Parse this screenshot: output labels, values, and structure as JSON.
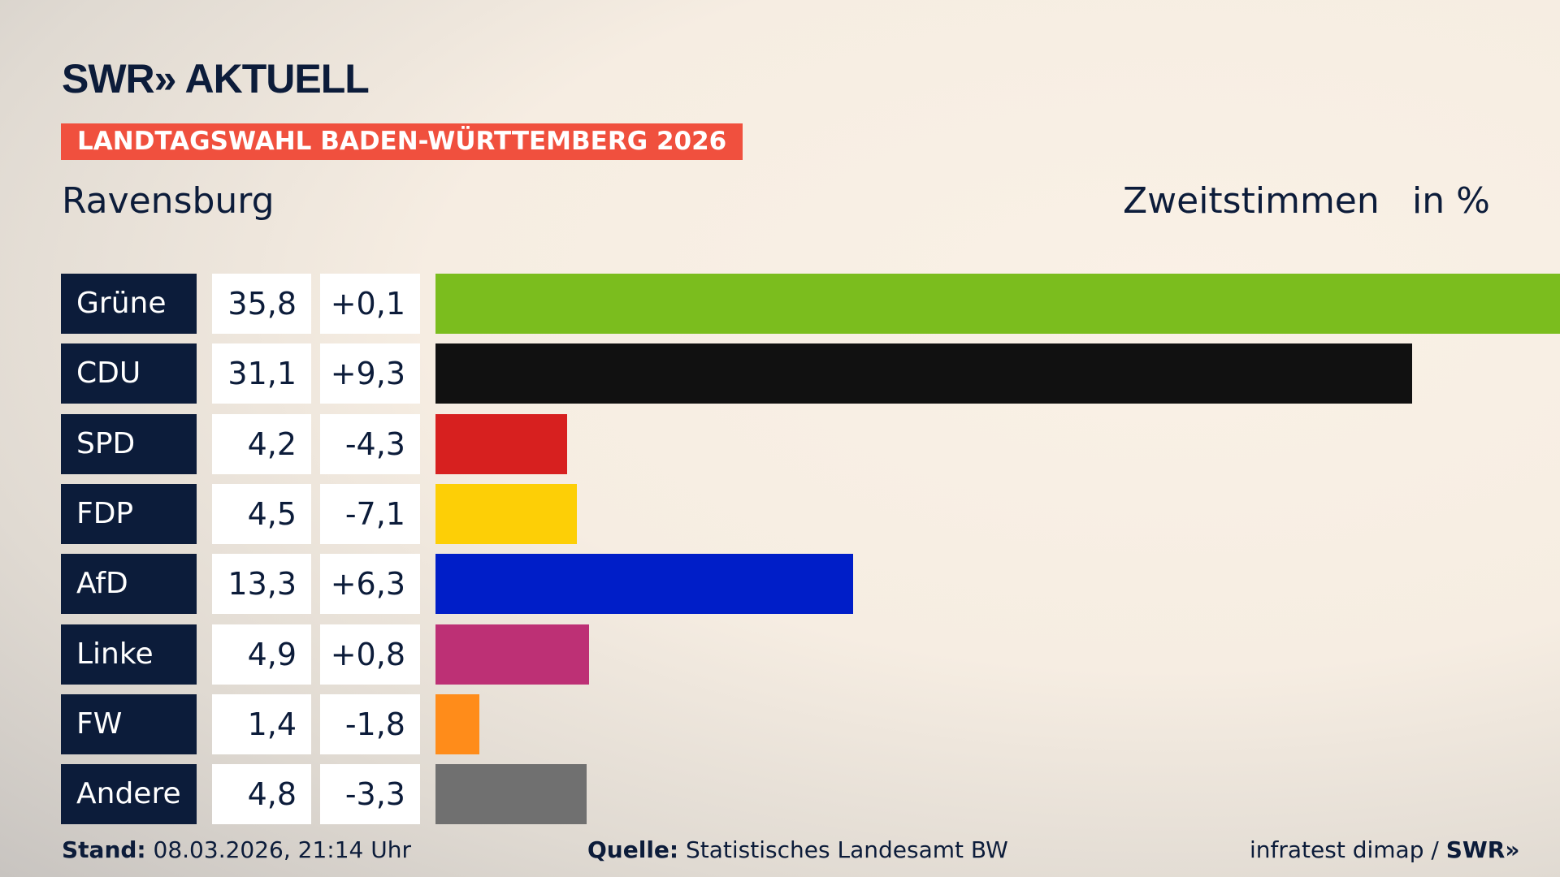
{
  "header": {
    "logo": "SWR» AKTUELL",
    "banner": "LANDTAGSWAHL BADEN-WÜRTTEMBERG 2026",
    "region": "Ravensburg",
    "measure": "Zweitstimmen",
    "unit": "in %"
  },
  "chart_data": {
    "type": "bar",
    "orientation": "horizontal",
    "categories": [
      "Grüne",
      "CDU",
      "SPD",
      "FDP",
      "AfD",
      "Linke",
      "FW",
      "Andere"
    ],
    "series": [
      {
        "values": [
          35.8,
          31.1,
          4.2,
          4.5,
          13.3,
          4.9,
          1.4,
          4.8
        ]
      }
    ],
    "value_labels": [
      "35,8",
      "31,1",
      "4,2",
      "4,5",
      "13,3",
      "4,9",
      "1,4",
      "4,8"
    ],
    "change_labels": [
      "+0,1",
      "+9,3",
      "-4,3",
      "-7,1",
      "+6,3",
      "+0,8",
      "-1,8",
      "-3,3"
    ],
    "changes": [
      0.1,
      9.3,
      -4.3,
      -7.1,
      6.3,
      0.8,
      -1.8,
      -3.3
    ],
    "colors": [
      "#7bbd1e",
      "#111111",
      "#d7201f",
      "#fdcf06",
      "#001ec8",
      "#bd3075",
      "#ff8c1a",
      "#707070"
    ]
  },
  "footer": {
    "stand_label": "Stand:",
    "stand": "08.03.2026, 21:14 Uhr",
    "source_label": "Quelle:",
    "source": "Statistisches Landesamt BW",
    "credit": "infratest dimap / ",
    "credit_logo": "SWR»"
  }
}
